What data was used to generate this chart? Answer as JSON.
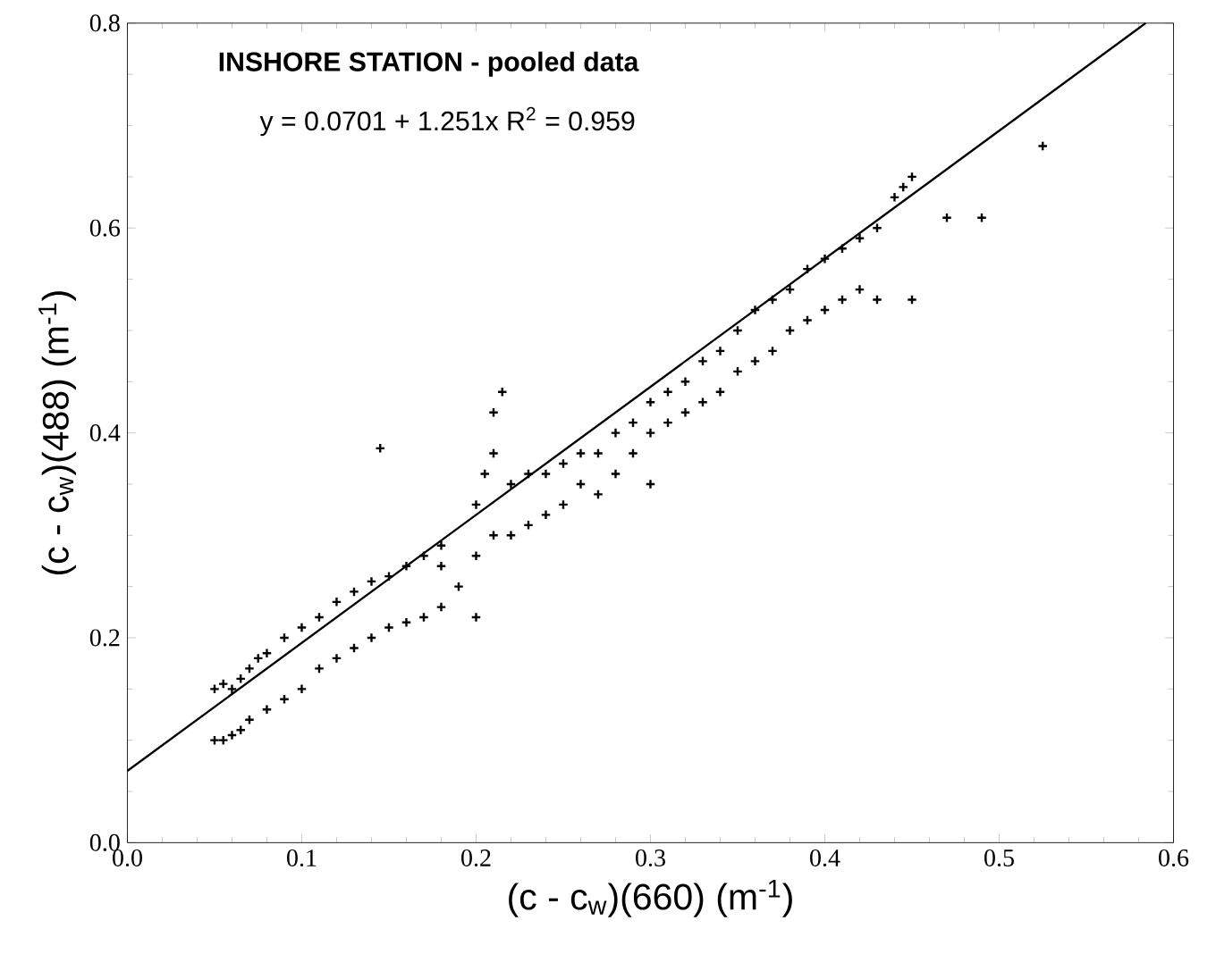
{
  "chart_data": {
    "type": "scatter",
    "xlabel": "(c - c$_{w}$)(660)  (m$^{-1}$)",
    "ylabel": "(c - c$_{w}$)(488)  (m$^{-1}$)",
    "annotations": [
      "**INSHORE STATION - pooled data**",
      "y = 0.0701 + 1.251x    R$^{2}$  = 0.959"
    ],
    "xlim": [
      0,
      0.6
    ],
    "ylim": [
      0,
      0.8
    ],
    "xticks": [
      {
        "value": 0,
        "label": "0.0"
      },
      {
        "value": 0.1,
        "label": "0.1"
      },
      {
        "value": 0.2,
        "label": "0.2"
      },
      {
        "value": 0.3,
        "label": "0.3"
      },
      {
        "value": 0.4,
        "label": "0.4"
      },
      {
        "value": 0.5,
        "label": "0.5"
      },
      {
        "value": 0.6,
        "label": "0.6"
      }
    ],
    "yticks": [
      {
        "value": 0,
        "label": "0.0"
      },
      {
        "value": 0.2,
        "label": "0.2"
      },
      {
        "value": 0.4,
        "label": "0.4"
      },
      {
        "value": 0.6,
        "label": "0.6"
      },
      {
        "value": 0.8,
        "label": "0.8"
      }
    ],
    "grid": false,
    "series": [
      {
        "marker": "cross",
        "color": "#000000",
        "x": [
          0.05,
          0.055,
          0.06,
          0.065,
          0.07,
          0.075,
          0.08,
          0.09,
          0.1,
          0.11,
          0.12,
          0.13,
          0.14,
          0.15,
          0.16,
          0.17,
          0.18,
          0.2,
          0.205,
          0.21,
          0.21,
          0.215,
          0.22,
          0.23,
          0.24,
          0.25,
          0.26,
          0.27,
          0.28,
          0.29,
          0.3,
          0.31,
          0.32,
          0.33,
          0.34,
          0.35,
          0.36,
          0.37,
          0.38,
          0.39,
          0.4,
          0.41,
          0.42,
          0.43,
          0.44,
          0.45,
          0.445,
          0.05,
          0.055,
          0.06,
          0.065,
          0.07,
          0.08,
          0.09,
          0.1,
          0.11,
          0.12,
          0.13,
          0.14,
          0.15,
          0.16,
          0.17,
          0.18,
          0.19,
          0.2,
          0.21,
          0.22,
          0.23,
          0.24,
          0.25,
          0.26,
          0.27,
          0.28,
          0.29,
          0.3,
          0.31,
          0.32,
          0.33,
          0.34,
          0.35,
          0.36,
          0.37,
          0.38,
          0.39,
          0.4,
          0.41,
          0.42,
          0.43,
          0.145,
          0.45,
          0.47,
          0.49,
          0.525,
          0.18,
          0.2,
          0.3
        ],
        "values": [
          0.15,
          0.155,
          0.15,
          0.16,
          0.17,
          0.18,
          0.185,
          0.2,
          0.21,
          0.22,
          0.235,
          0.245,
          0.255,
          0.26,
          0.27,
          0.28,
          0.29,
          0.33,
          0.36,
          0.38,
          0.42,
          0.44,
          0.35,
          0.36,
          0.36,
          0.37,
          0.38,
          0.38,
          0.4,
          0.41,
          0.43,
          0.44,
          0.45,
          0.47,
          0.48,
          0.5,
          0.52,
          0.53,
          0.54,
          0.56,
          0.57,
          0.58,
          0.59,
          0.6,
          0.63,
          0.65,
          0.64,
          0.1,
          0.1,
          0.105,
          0.11,
          0.12,
          0.13,
          0.14,
          0.15,
          0.17,
          0.18,
          0.19,
          0.2,
          0.21,
          0.215,
          0.22,
          0.23,
          0.25,
          0.28,
          0.3,
          0.3,
          0.31,
          0.32,
          0.33,
          0.35,
          0.34,
          0.36,
          0.38,
          0.4,
          0.41,
          0.42,
          0.43,
          0.44,
          0.46,
          0.47,
          0.48,
          0.5,
          0.51,
          0.52,
          0.53,
          0.54,
          0.53,
          0.385,
          0.53,
          0.61,
          0.61,
          0.68,
          0.27,
          0.22,
          0.35
        ]
      },
      {
        "type": "line",
        "marker": "none",
        "line_style": "solid",
        "color": "#000000",
        "x": [
          0,
          0.584
        ],
        "values": [
          0.07,
          0.8
        ]
      }
    ]
  }
}
